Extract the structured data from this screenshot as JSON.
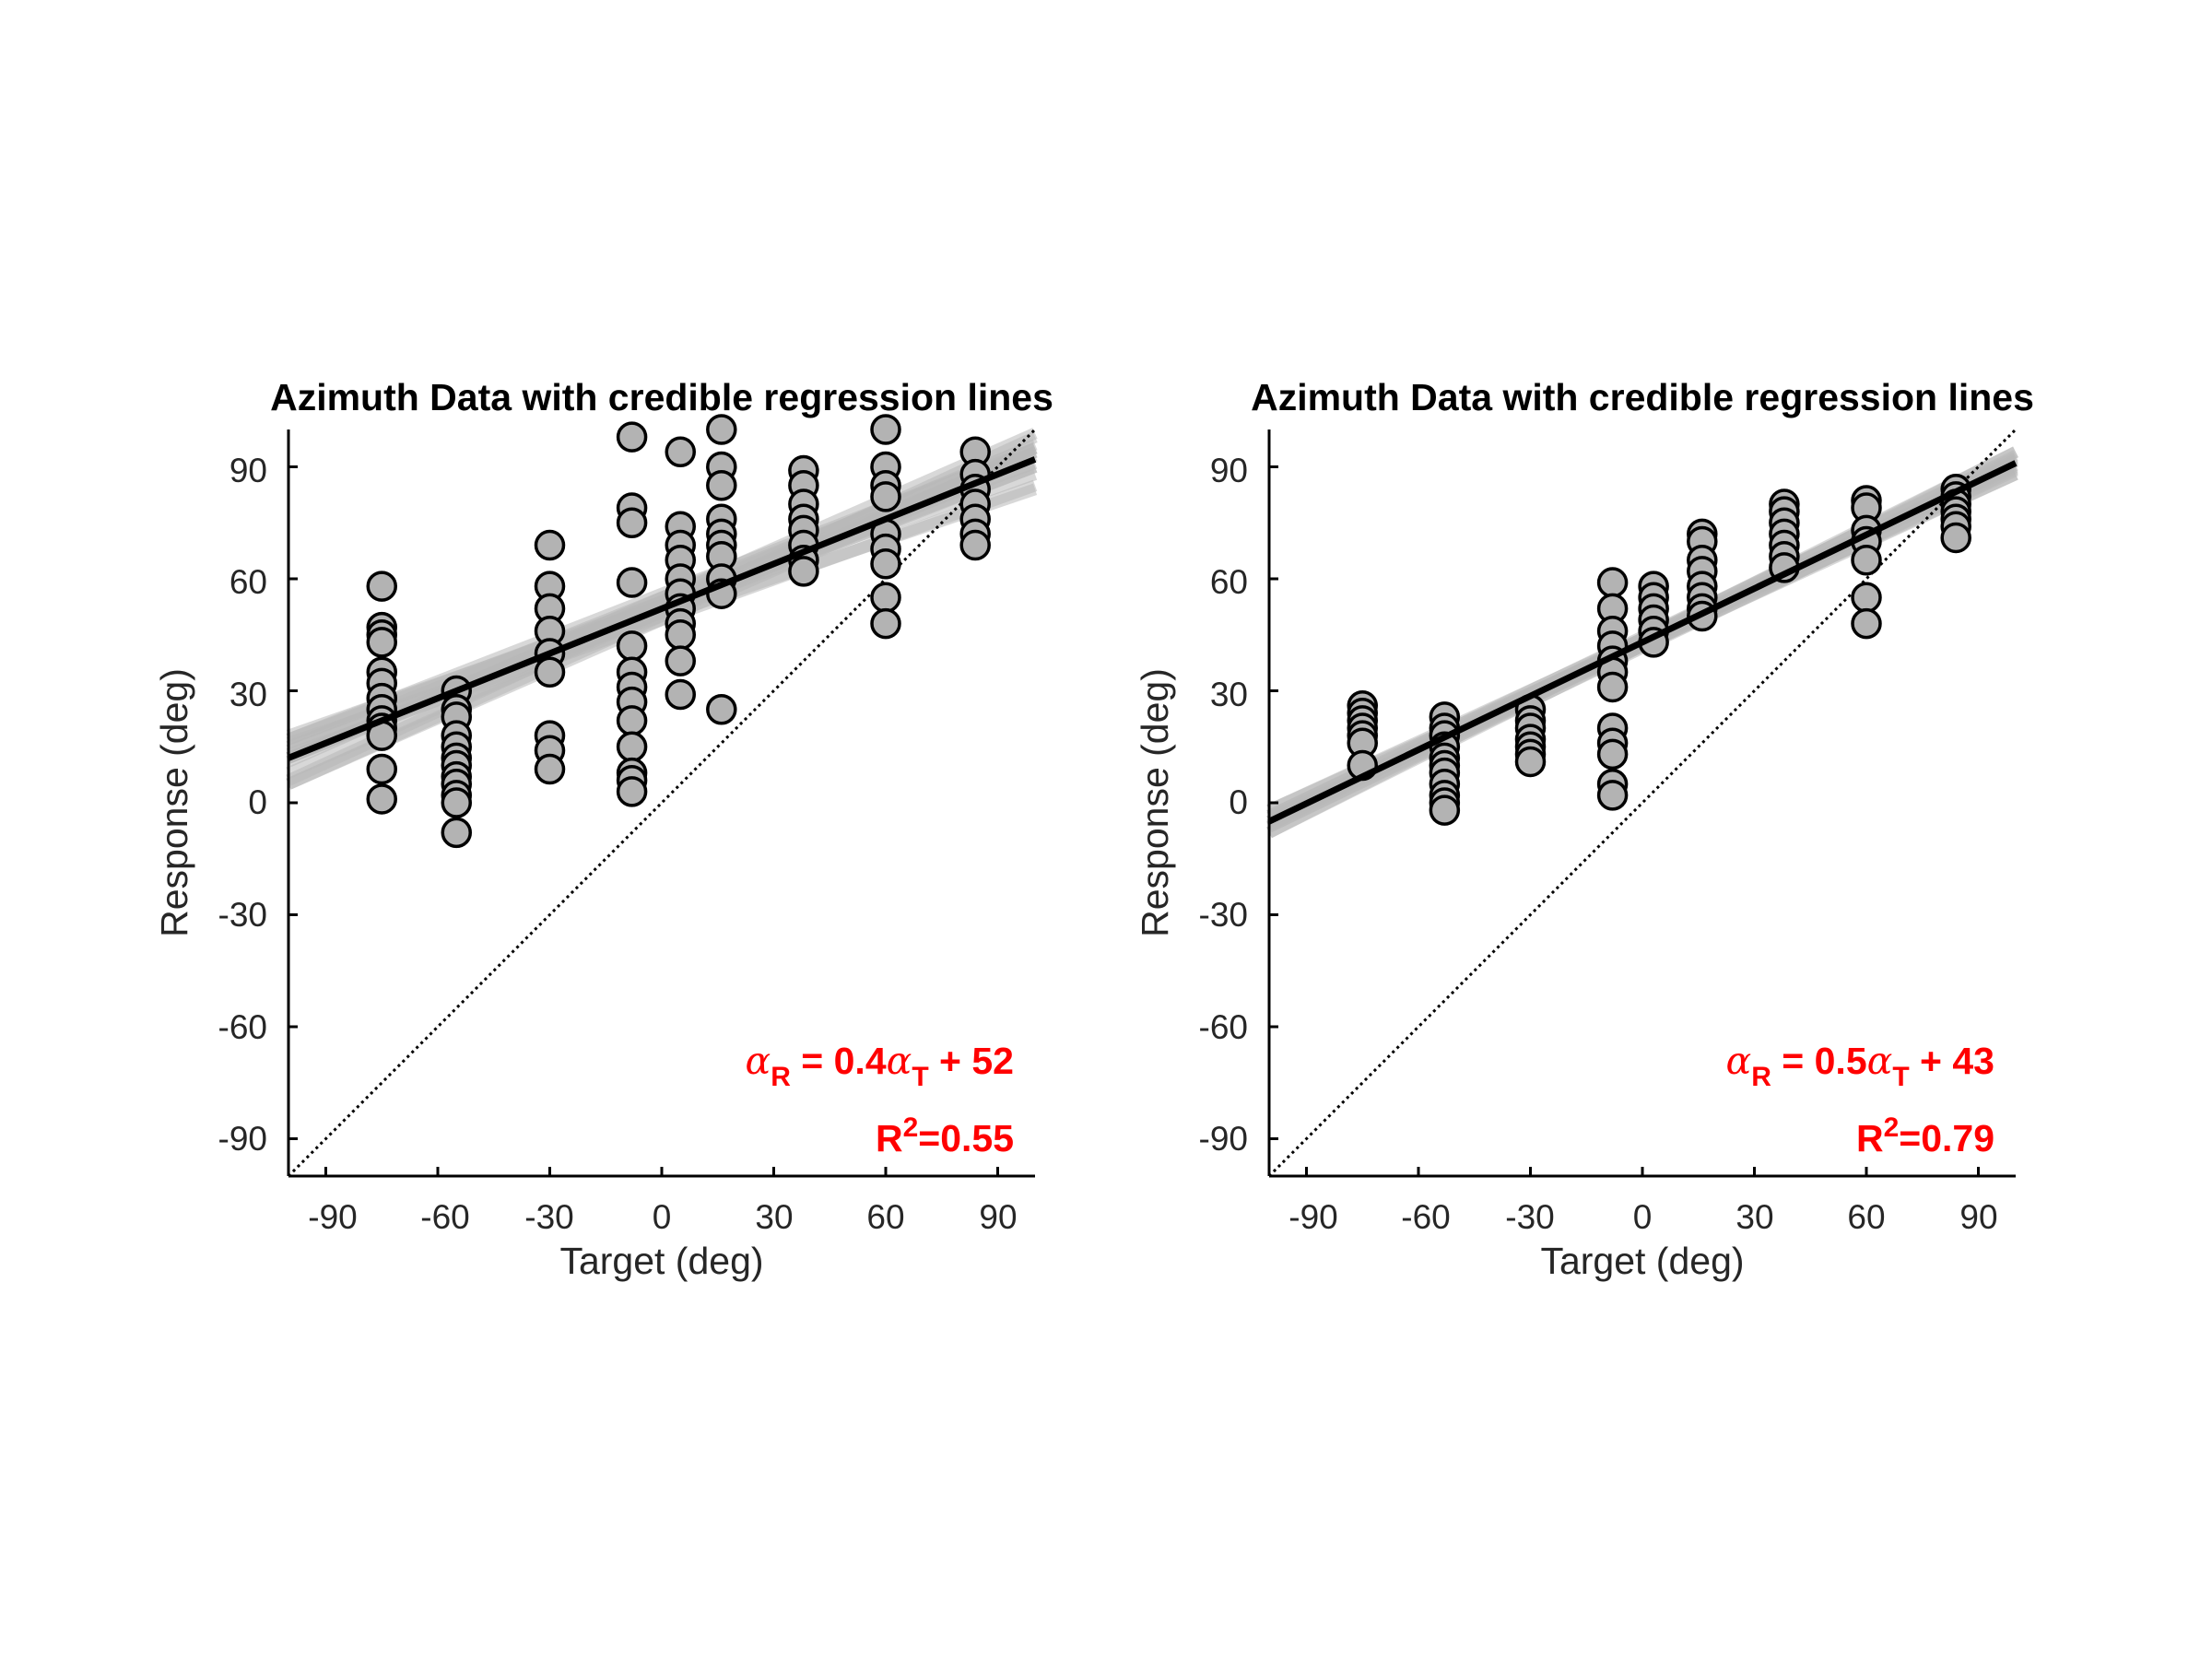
{
  "chart_data": [
    {
      "type": "scatter",
      "title": "Azimuth Data with credible regression lines",
      "xlabel": "Target (deg)",
      "ylabel": "Response (deg)",
      "xlim": [
        -100,
        100
      ],
      "ylim": [
        -100,
        100
      ],
      "xticks": [
        "-90",
        "-60",
        "-30",
        "0",
        "30",
        "60",
        "90"
      ],
      "yticks": [
        "90",
        "60",
        "30",
        "0",
        "-30",
        "-60",
        "-90"
      ],
      "identity_line": true,
      "grid": false,
      "regression": {
        "slope": 0.4,
        "intercept": 52
      },
      "credible_lines": [
        {
          "slope": 0.36,
          "intercept": 49
        },
        {
          "slope": 0.44,
          "intercept": 55
        },
        {
          "slope": 0.39,
          "intercept": 51
        },
        {
          "slope": 0.42,
          "intercept": 54
        },
        {
          "slope": 0.46,
          "intercept": 52
        },
        {
          "slope": 0.34,
          "intercept": 50
        },
        {
          "slope": 0.41,
          "intercept": 53
        },
        {
          "slope": 0.38,
          "intercept": 52
        },
        {
          "slope": 0.43,
          "intercept": 51
        },
        {
          "slope": 0.37,
          "intercept": 54
        },
        {
          "slope": 0.45,
          "intercept": 50
        },
        {
          "slope": 0.4,
          "intercept": 55
        },
        {
          "slope": 0.35,
          "intercept": 53
        },
        {
          "slope": 0.44,
          "intercept": 49
        },
        {
          "slope": 0.39,
          "intercept": 56
        }
      ],
      "points": [
        {
          "x": -75,
          "ys": [
            58,
            47,
            45,
            43,
            35,
            32,
            28,
            25,
            22,
            20,
            18,
            9,
            1
          ]
        },
        {
          "x": -55,
          "ys": [
            30,
            25,
            23,
            18,
            15,
            12,
            10,
            7,
            5,
            2,
            0,
            -8
          ]
        },
        {
          "x": -30,
          "ys": [
            69,
            58,
            52,
            46,
            40,
            35,
            18,
            14,
            9
          ]
        },
        {
          "x": -8,
          "ys": [
            98,
            79,
            75,
            59,
            42,
            35,
            31,
            27,
            22,
            15,
            8,
            6,
            3
          ]
        },
        {
          "x": 5,
          "ys": [
            94,
            74,
            69,
            65,
            60,
            56,
            52,
            48,
            45,
            38,
            29
          ]
        },
        {
          "x": 16,
          "ys": [
            100,
            90,
            85,
            76,
            72,
            69,
            66,
            60,
            56,
            25
          ]
        },
        {
          "x": 38,
          "ys": [
            89,
            85,
            80,
            76,
            73,
            69,
            65,
            62
          ]
        },
        {
          "x": 60,
          "ys": [
            100,
            90,
            85,
            82,
            72,
            68,
            64,
            55,
            48
          ]
        },
        {
          "x": 84,
          "ys": [
            94,
            88,
            84,
            80,
            76,
            72,
            69
          ]
        }
      ],
      "annotation": {
        "equation": "α_R = 0.4α_T + 52",
        "eq_coef": "0.4",
        "eq_const": "+ 52",
        "r2_label": "R",
        "r2_value": "=0.55"
      }
    },
    {
      "type": "scatter",
      "title": "Azimuth Data with credible regression lines",
      "xlabel": "Target (deg)",
      "ylabel": "Response (deg)",
      "xlim": [
        -100,
        100
      ],
      "ylim": [
        -100,
        100
      ],
      "xticks": [
        "-90",
        "-60",
        "-30",
        "0",
        "30",
        "60",
        "90"
      ],
      "yticks": [
        "90",
        "60",
        "30",
        "0",
        "-30",
        "-60",
        "-90"
      ],
      "identity_line": true,
      "grid": false,
      "regression": {
        "slope": 0.48,
        "intercept": 43
      },
      "credible_lines": [
        {
          "slope": 0.46,
          "intercept": 42
        },
        {
          "slope": 0.5,
          "intercept": 44
        },
        {
          "slope": 0.47,
          "intercept": 43.5
        },
        {
          "slope": 0.49,
          "intercept": 42.5
        },
        {
          "slope": 0.45,
          "intercept": 43
        },
        {
          "slope": 0.51,
          "intercept": 43
        },
        {
          "slope": 0.48,
          "intercept": 41.5
        },
        {
          "slope": 0.48,
          "intercept": 44.5
        },
        {
          "slope": 0.47,
          "intercept": 42
        },
        {
          "slope": 0.49,
          "intercept": 44
        },
        {
          "slope": 0.46,
          "intercept": 44
        },
        {
          "slope": 0.5,
          "intercept": 42
        }
      ],
      "points": [
        {
          "x": -75,
          "ys": [
            26,
            24,
            22,
            20,
            18,
            16,
            10
          ]
        },
        {
          "x": -53,
          "ys": [
            23,
            20,
            18,
            15,
            12,
            10,
            8,
            5,
            2,
            0,
            -2
          ]
        },
        {
          "x": -30,
          "ys": [
            25,
            22,
            20,
            17,
            15,
            13,
            11
          ]
        },
        {
          "x": -8,
          "ys": [
            59,
            52,
            46,
            42,
            38,
            35,
            31,
            20,
            16,
            13,
            5,
            2
          ]
        },
        {
          "x": 3,
          "ys": [
            58,
            55,
            52,
            49,
            46,
            43
          ]
        },
        {
          "x": 16,
          "ys": [
            72,
            70,
            65,
            62,
            58,
            55,
            52,
            50
          ]
        },
        {
          "x": 38,
          "ys": [
            80,
            78,
            75,
            72,
            69,
            66,
            63
          ]
        },
        {
          "x": 60,
          "ys": [
            81,
            79,
            73,
            70,
            65,
            55,
            48
          ]
        },
        {
          "x": 84,
          "ys": [
            84,
            82,
            80,
            78,
            76,
            74,
            71
          ]
        }
      ],
      "annotation": {
        "equation": "α_R = 0.5α_T + 43",
        "eq_coef": "0.5",
        "eq_const": "+ 43",
        "r2_label": "R",
        "r2_value": "=0.79"
      }
    }
  ]
}
